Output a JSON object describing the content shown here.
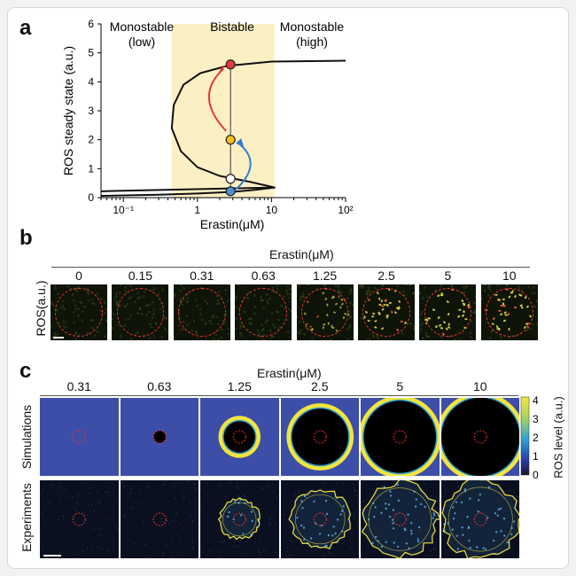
{
  "panel_a": {
    "label": "a",
    "regions": {
      "left": "Monostable\n(low)",
      "middle": "Bistable",
      "right": "Monostable\n(high)"
    },
    "chart_data": {
      "type": "line",
      "xlabel": "Erastin(μM)",
      "ylabel": "ROS steady state (a.u.)",
      "xscale": "log",
      "xlim": [
        0.05,
        100
      ],
      "ylim": [
        0,
        6
      ],
      "xticks": [
        "10⁻¹",
        "1",
        "10",
        "10²"
      ],
      "yticks": [
        "0",
        "1",
        "2",
        "3",
        "4",
        "5",
        "6"
      ],
      "bistable_range": [
        0.45,
        11
      ],
      "points": [
        {
          "name": "high",
          "x": 2.8,
          "y": 4.6,
          "color": "#e53935"
        },
        {
          "name": "intermediate",
          "x": 2.8,
          "y": 2.0,
          "color": "#f2c21b"
        },
        {
          "name": "unstable",
          "x": 2.8,
          "y": 0.65,
          "color": "#ffffff"
        },
        {
          "name": "low",
          "x": 2.8,
          "y": 0.22,
          "color": "#4a90d9"
        }
      ]
    }
  },
  "panel_b": {
    "label": "b",
    "header": "Erastin(μM)",
    "ylabel": "ROS(a.u.)",
    "concentrations": [
      "0",
      "0.15",
      "0.31",
      "0.63",
      "1.25",
      "2.5",
      "5",
      "10"
    ],
    "intensity": [
      0.05,
      0.07,
      0.08,
      0.12,
      0.45,
      0.8,
      0.9,
      0.85
    ]
  },
  "panel_c": {
    "label": "c",
    "header": "Erastin(μM)",
    "concentrations": [
      "0.31",
      "0.63",
      "1.25",
      "2.5",
      "5",
      "10"
    ],
    "row_labels": [
      "Simulations",
      "Experiments"
    ],
    "colorbar": {
      "label": "ROS level (a.u.)",
      "ticks": [
        "4",
        "3",
        "2",
        "1",
        "0"
      ]
    },
    "sim_core_radius": [
      0,
      0.08,
      0.2,
      0.36,
      0.46,
      0.5
    ],
    "exp_ring_radius": [
      0,
      0,
      0.25,
      0.37,
      0.47,
      0.48
    ]
  },
  "colors": {
    "accent_red": "#e8332f",
    "bistable_band": "#fbefc4",
    "sim_bg": "#3d4ea8",
    "ring_yellow": "#f4e43c"
  }
}
